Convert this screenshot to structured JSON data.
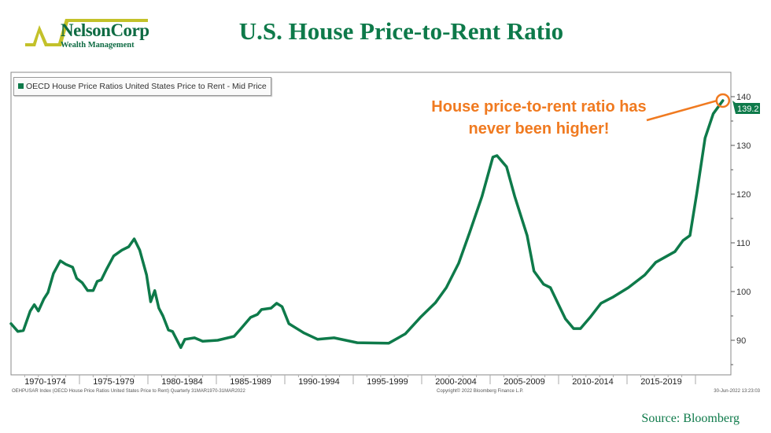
{
  "logo": {
    "name": "NelsonCorp",
    "subtitle": "Wealth Management",
    "colors": {
      "mark": "#c3c12a",
      "text": "#0e6b43"
    }
  },
  "title": "U.S. House Price-to-Rent Ratio",
  "annotation": "House price-to-rent ratio has never been higher!",
  "footer": {
    "left": "OEHPUSAR Index (OECD House Price Ratios United States Price to Rent)  Quarterly 31MAR1970-31MAR2022",
    "center": "Copyright© 2022 Bloomberg Finance L.P.",
    "right": "30-Jun-2022 13:23:03"
  },
  "source": "Source: Bloomberg",
  "colors": {
    "line": "#0e7a4a",
    "annotation": "#f07a20"
  },
  "chart_data": {
    "type": "line",
    "legend": "OECD House Price Ratios United States Price to Rent - Mid Price",
    "legend_position": "top-left",
    "xlim": [
      1970,
      2022.75
    ],
    "ylim": [
      84,
      142
    ],
    "y_axis_side": "right",
    "yticks": [
      90,
      100,
      110,
      120,
      130,
      140
    ],
    "x_tick_labels": [
      "1970-1974",
      "1975-1979",
      "1980-1984",
      "1985-1989",
      "1990-1994",
      "1995-1999",
      "2000-2004",
      "2005-2009",
      "2010-2014",
      "2015-2019"
    ],
    "grid": false,
    "last_value_label": "139.2",
    "series": [
      {
        "x": [
          1970.0,
          1970.5,
          1970.9,
          1971.4,
          1971.7,
          1972.0,
          1972.4,
          1972.7,
          1973.1,
          1973.6,
          1974.0,
          1974.5,
          1974.8,
          1975.2,
          1975.6,
          1976.0,
          1976.3,
          1976.6,
          1977.0,
          1977.5,
          1978.1,
          1978.6,
          1979.0,
          1979.4,
          1979.9,
          1980.2,
          1980.5,
          1980.8,
          1981.1,
          1981.5,
          1981.8,
          1982.4,
          1982.7,
          1983.4,
          1984.0,
          1985.1,
          1986.3,
          1986.8,
          1987.5,
          1988.0,
          1988.3,
          1989.0,
          1989.4,
          1989.8,
          1990.3,
          1991.4,
          1992.4,
          1993.6,
          1995.3,
          1997.6,
          1998.8,
          1999.9,
          2001.0,
          2001.8,
          2002.7,
          2003.5,
          2004.4,
          2005.2,
          2005.5,
          2006.2,
          2006.8,
          2007.7,
          2008.2,
          2008.9,
          2009.4,
          2010.0,
          2010.5,
          2011.1,
          2011.6,
          2012.3,
          2013.1,
          2014.0,
          2015.1,
          2016.3,
          2017.1,
          2018.5,
          2019.1,
          2019.6,
          2020.1,
          2020.7,
          2021.3,
          2022.0
        ],
        "y": [
          93.4,
          91.8,
          92.0,
          96.0,
          97.3,
          96.0,
          98.5,
          99.8,
          103.7,
          106.3,
          105.6,
          105.0,
          102.7,
          101.8,
          100.2,
          100.2,
          102.1,
          102.4,
          104.7,
          107.3,
          108.5,
          109.2,
          110.8,
          108.5,
          103.4,
          97.9,
          100.2,
          96.6,
          95.0,
          92.1,
          91.8,
          88.5,
          90.2,
          90.5,
          89.8,
          90.0,
          90.8,
          92.4,
          94.7,
          95.3,
          96.3,
          96.6,
          97.6,
          96.9,
          93.4,
          91.5,
          90.2,
          90.5,
          89.5,
          89.4,
          91.3,
          94.7,
          97.7,
          100.8,
          105.8,
          112.1,
          119.5,
          127.6,
          127.9,
          125.6,
          119.5,
          111.5,
          104.2,
          101.5,
          100.8,
          97.3,
          94.4,
          92.4,
          92.4,
          94.7,
          97.6,
          98.9,
          100.8,
          103.4,
          106.0,
          108.2,
          110.5,
          111.5,
          120.2,
          131.5,
          136.5,
          139.2
        ]
      }
    ]
  }
}
